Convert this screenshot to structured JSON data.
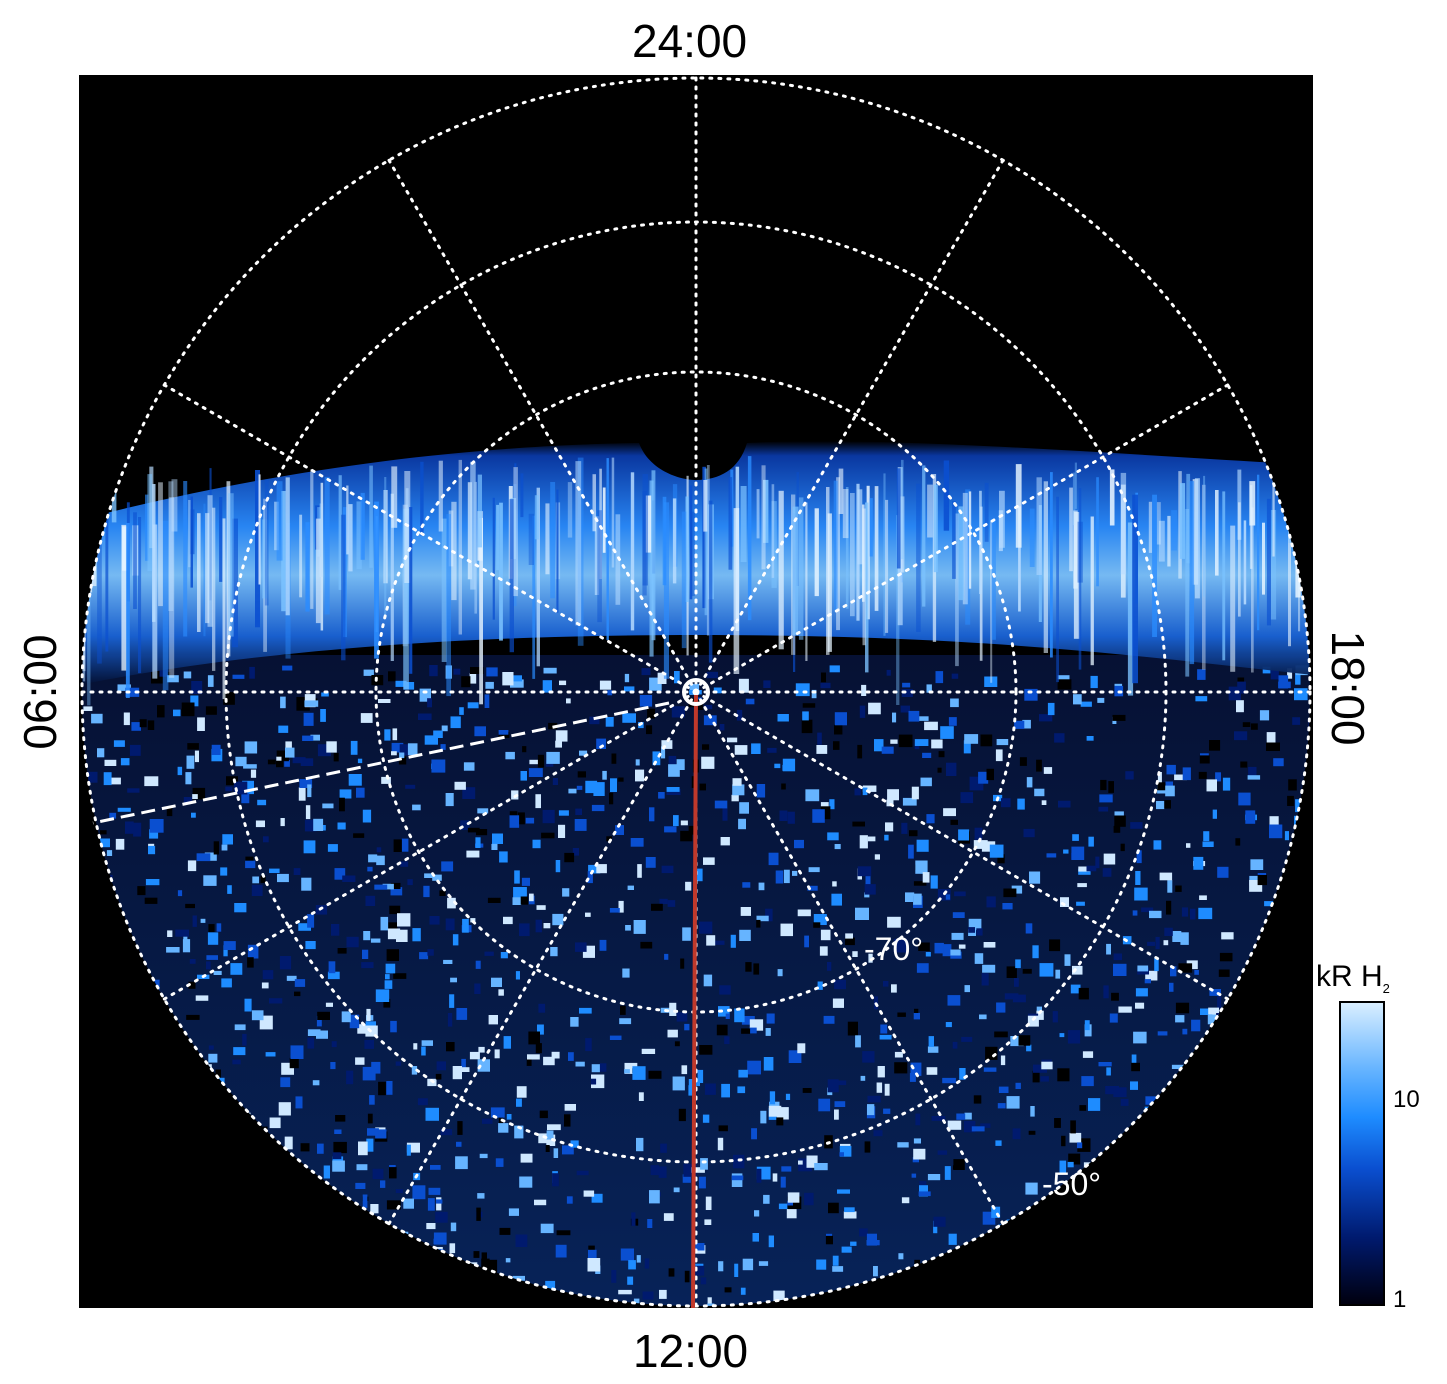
{
  "hour_labels": {
    "top": "24:00",
    "bottom": "12:00",
    "left": "06:00",
    "right": "18:00"
  },
  "latitude_labels": [
    "-70°",
    "-50°"
  ],
  "colorbar": {
    "title": "kR H",
    "subscript": "2",
    "ticks": [
      "10",
      "1"
    ]
  },
  "colors": {
    "background": "#000000",
    "grid": "#ffffff",
    "meridian_line": "#c0392b",
    "aurora": "#1e8cff"
  }
}
